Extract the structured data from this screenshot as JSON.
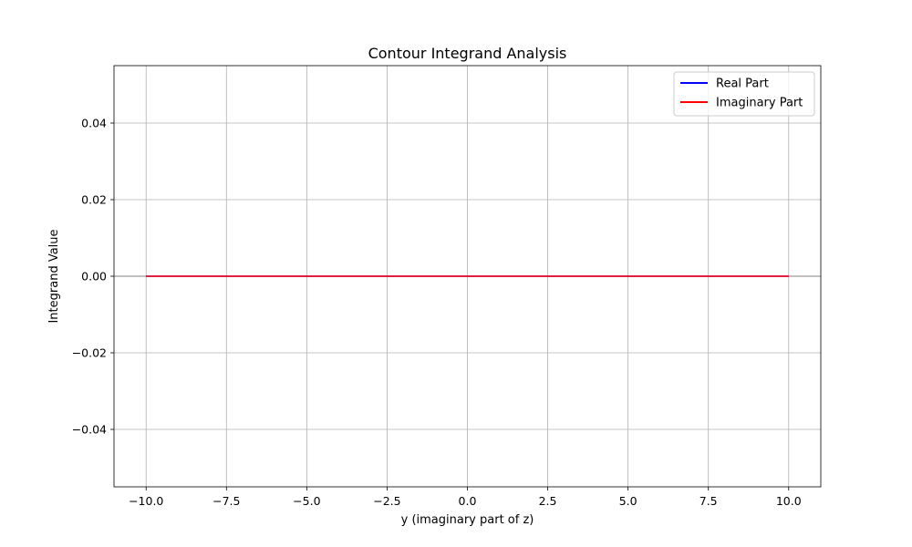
{
  "chart_data": {
    "type": "line",
    "title": "Contour Integrand Analysis",
    "xlabel": "y (imaginary part of z)",
    "ylabel": "Integrand Value",
    "xlim": [
      -11.0,
      11.0
    ],
    "ylim": [
      -0.055,
      0.055
    ],
    "xticks": [
      -10.0,
      -7.5,
      -5.0,
      -2.5,
      0.0,
      2.5,
      5.0,
      7.5,
      10.0
    ],
    "xtick_labels": [
      "−10.0",
      "−7.5",
      "−5.0",
      "−2.5",
      "0.0",
      "2.5",
      "5.0",
      "7.5",
      "10.0"
    ],
    "yticks": [
      -0.04,
      -0.02,
      0.0,
      0.02,
      0.04
    ],
    "ytick_labels": [
      "−0.04",
      "−0.02",
      "0.00",
      "0.02",
      "0.04"
    ],
    "grid": true,
    "legend_position": "top-right",
    "reference_line": {
      "y": 0,
      "color": "#808080"
    },
    "series": [
      {
        "name": "Real Part",
        "color": "#0000ff",
        "x": [
          -10,
          10
        ],
        "y": [
          0,
          0
        ]
      },
      {
        "name": "Imaginary Part",
        "color": "#ff0000",
        "x": [
          -10,
          10
        ],
        "y": [
          0,
          0
        ]
      }
    ]
  }
}
